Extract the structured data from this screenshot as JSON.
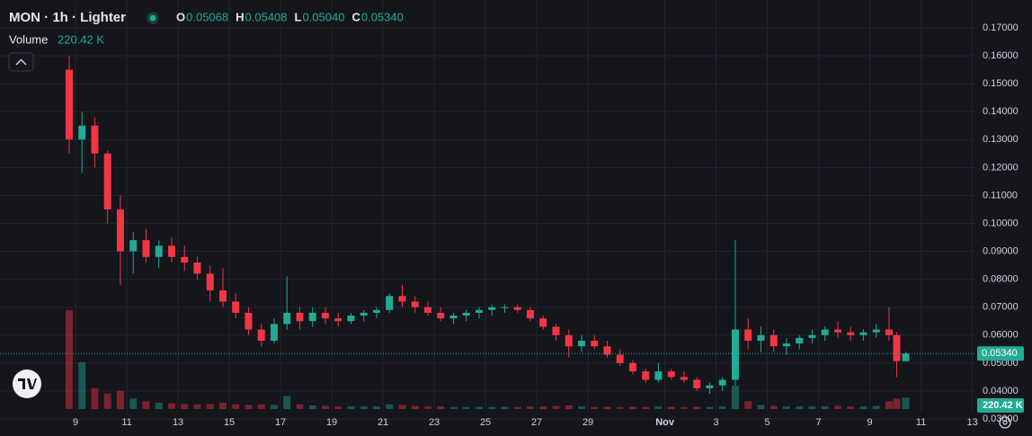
{
  "chart_data": {
    "type": "candlestick",
    "title": "MON · 1h · Lighter",
    "ohlc_legend": [
      {
        "key": "O",
        "label": "0.05068"
      },
      {
        "key": "H",
        "label": "0.05408"
      },
      {
        "key": "L",
        "label": "0.05040"
      },
      {
        "key": "C",
        "label": "0.05340"
      }
    ],
    "volume_title": "Volume",
    "volume_label": "220.42 K",
    "last_price_label": "0.05340",
    "up_color": "#22ab94",
    "down_color": "#f23645",
    "grid": true,
    "x": [
      8.75,
      9.25,
      9.75,
      10.25,
      10.75,
      11.25,
      11.75,
      12.25,
      12.75,
      13.25,
      13.75,
      14.25,
      14.75,
      15.25,
      15.75,
      16.25,
      16.75,
      17.25,
      17.75,
      18.25,
      18.75,
      19.25,
      19.75,
      20.25,
      20.75,
      21.25,
      21.75,
      22.25,
      22.75,
      23.25,
      23.75,
      24.25,
      24.75,
      25.25,
      25.75,
      26.25,
      26.75,
      27.25,
      27.75,
      28.25,
      28.75,
      29.25,
      29.75,
      30.25,
      30.75,
      31.25,
      31.75,
      32.25,
      32.75,
      33.25,
      33.75,
      34.25,
      34.75,
      35.25,
      35.75,
      36.25,
      36.75,
      37.25,
      37.75,
      38.25,
      38.75,
      39.25,
      39.75,
      40.25,
      40.75,
      41.05,
      41.4
    ],
    "open": [
      0.155,
      0.13,
      0.135,
      0.125,
      0.105,
      0.09,
      0.094,
      0.088,
      0.092,
      0.088,
      0.086,
      0.082,
      0.076,
      0.072,
      0.068,
      0.062,
      0.058,
      0.064,
      0.068,
      0.065,
      0.068,
      0.066,
      0.065,
      0.067,
      0.068,
      0.069,
      0.074,
      0.072,
      0.07,
      0.068,
      0.066,
      0.067,
      0.068,
      0.069,
      0.07,
      0.07,
      0.069,
      0.066,
      0.063,
      0.06,
      0.056,
      0.058,
      0.056,
      0.053,
      0.05,
      0.047,
      0.044,
      0.047,
      0.045,
      0.044,
      0.041,
      0.042,
      0.044,
      0.062,
      0.058,
      0.06,
      0.056,
      0.057,
      0.059,
      0.06,
      0.062,
      0.061,
      0.06,
      0.061,
      0.062,
      0.06,
      0.05068
    ],
    "high": [
      0.16,
      0.14,
      0.138,
      0.126,
      0.11,
      0.097,
      0.098,
      0.094,
      0.095,
      0.092,
      0.088,
      0.085,
      0.084,
      0.075,
      0.07,
      0.064,
      0.066,
      0.081,
      0.07,
      0.07,
      0.07,
      0.068,
      0.068,
      0.069,
      0.07,
      0.075,
      0.078,
      0.074,
      0.072,
      0.07,
      0.068,
      0.069,
      0.07,
      0.071,
      0.071,
      0.071,
      0.07,
      0.067,
      0.064,
      0.062,
      0.06,
      0.06,
      0.058,
      0.055,
      0.051,
      0.048,
      0.05,
      0.048,
      0.047,
      0.045,
      0.043,
      0.045,
      0.094,
      0.066,
      0.063,
      0.062,
      0.059,
      0.06,
      0.062,
      0.063,
      0.065,
      0.063,
      0.062,
      0.064,
      0.07,
      0.061,
      0.05408
    ],
    "low": [
      0.125,
      0.118,
      0.12,
      0.1,
      0.078,
      0.082,
      0.086,
      0.084,
      0.086,
      0.083,
      0.08,
      0.072,
      0.07,
      0.066,
      0.06,
      0.056,
      0.057,
      0.062,
      0.062,
      0.063,
      0.064,
      0.063,
      0.064,
      0.065,
      0.066,
      0.068,
      0.07,
      0.068,
      0.067,
      0.065,
      0.064,
      0.065,
      0.066,
      0.067,
      0.068,
      0.068,
      0.065,
      0.062,
      0.058,
      0.052,
      0.054,
      0.055,
      0.052,
      0.049,
      0.046,
      0.043,
      0.043,
      0.044,
      0.043,
      0.04,
      0.039,
      0.04,
      0.042,
      0.055,
      0.054,
      0.054,
      0.053,
      0.055,
      0.057,
      0.058,
      0.059,
      0.058,
      0.058,
      0.059,
      0.058,
      0.045,
      0.0504
    ],
    "close": [
      0.13,
      0.135,
      0.125,
      0.105,
      0.09,
      0.094,
      0.088,
      0.092,
      0.088,
      0.086,
      0.082,
      0.076,
      0.072,
      0.068,
      0.062,
      0.058,
      0.064,
      0.068,
      0.065,
      0.068,
      0.066,
      0.065,
      0.067,
      0.068,
      0.069,
      0.074,
      0.072,
      0.07,
      0.068,
      0.066,
      0.067,
      0.068,
      0.069,
      0.07,
      0.07,
      0.069,
      0.066,
      0.063,
      0.06,
      0.056,
      0.058,
      0.056,
      0.053,
      0.05,
      0.047,
      0.044,
      0.047,
      0.045,
      0.044,
      0.041,
      0.042,
      0.044,
      0.062,
      0.058,
      0.06,
      0.056,
      0.057,
      0.059,
      0.06,
      0.062,
      0.061,
      0.06,
      0.061,
      0.062,
      0.06,
      0.0507,
      0.0534
    ],
    "volume": [
      1900,
      900,
      400,
      300,
      350,
      200,
      150,
      120,
      110,
      100,
      90,
      100,
      120,
      90,
      80,
      90,
      80,
      250,
      90,
      70,
      60,
      50,
      50,
      50,
      50,
      90,
      80,
      60,
      50,
      50,
      40,
      40,
      40,
      40,
      40,
      40,
      50,
      50,
      60,
      70,
      50,
      40,
      40,
      40,
      40,
      40,
      50,
      40,
      40,
      40,
      40,
      50,
      450,
      150,
      80,
      60,
      50,
      50,
      50,
      50,
      60,
      50,
      50,
      60,
      150,
      200,
      220.42
    ],
    "xlim": [
      6.05,
      44.12
    ],
    "xticks": [
      9,
      11,
      13,
      15,
      17,
      19,
      21,
      23,
      25,
      27,
      29,
      {
        "value": 32,
        "label": "Nov"
      },
      {
        "value": 34,
        "label": "3"
      },
      {
        "value": 36,
        "label": "5"
      },
      {
        "value": 38,
        "label": "7"
      },
      {
        "value": 40,
        "label": "9"
      },
      {
        "value": 42,
        "label": "11"
      },
      {
        "value": 44,
        "label": "13"
      }
    ],
    "ylim": [
      0.03,
      0.17
    ],
    "yticks": [
      {
        "value": 0.03,
        "label": "0.03000"
      },
      {
        "value": 0.04,
        "label": "0.04000"
      },
      {
        "value": 0.05,
        "label": "0.05000"
      },
      {
        "value": 0.06,
        "label": "0.06000"
      },
      {
        "value": 0.07,
        "label": "0.07000"
      },
      {
        "value": 0.08,
        "label": "0.08000"
      },
      {
        "value": 0.09,
        "label": "0.09000"
      },
      {
        "value": 0.1,
        "label": "0.10000"
      },
      {
        "value": 0.11,
        "label": "0.11000"
      },
      {
        "value": 0.12,
        "label": "0.12000"
      },
      {
        "value": 0.13,
        "label": "0.13000"
      },
      {
        "value": 0.14,
        "label": "0.14000"
      },
      {
        "value": 0.15,
        "label": "0.15000"
      },
      {
        "value": 0.16,
        "label": "0.16000"
      },
      {
        "value": 0.17,
        "label": "0.17000"
      }
    ]
  }
}
